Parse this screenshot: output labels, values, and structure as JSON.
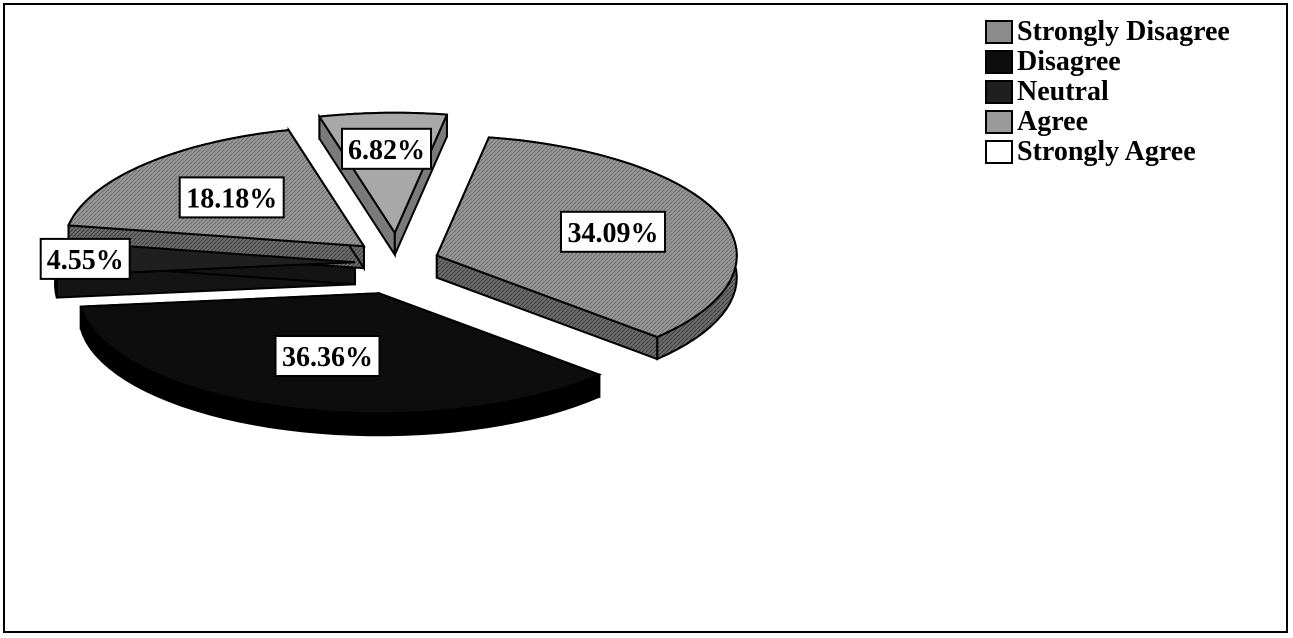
{
  "chart_data": {
    "type": "pie",
    "title": "",
    "categories": [
      "Strongly Disagree",
      "Disagree",
      "Neutral",
      "Agree",
      "Strongly Agree"
    ],
    "values": [
      34.09,
      36.36,
      4.55,
      18.18,
      6.82
    ],
    "labels": [
      "34.09%",
      "36.36%",
      "4.55%",
      "18.18%",
      "6.82%"
    ],
    "colors": [
      "#8c8c8c",
      "#111111",
      "#2a2a2a",
      "#8f8f8f",
      "#ffffff"
    ],
    "legend_position": "top-right",
    "exploded": true,
    "three_d": true
  }
}
